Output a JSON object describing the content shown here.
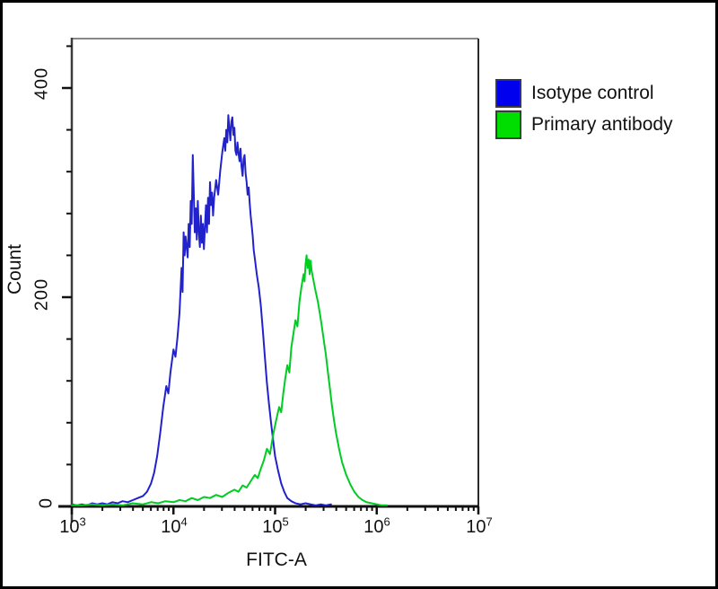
{
  "figure": {
    "background": "#ffffff",
    "outer_border_color": "#000000"
  },
  "chart_data": {
    "type": "line",
    "subtype": "flow-cytometry-histogram-overlay",
    "title": "",
    "xlabel": "FITC-A",
    "ylabel": "Count",
    "x_scale": "log10",
    "x_range_log10": [
      3,
      7
    ],
    "y_range": [
      0,
      447
    ],
    "grid": "off",
    "x_ticks": [
      {
        "base": "10",
        "exp": "3"
      },
      {
        "base": "10",
        "exp": "4"
      },
      {
        "base": "10",
        "exp": "5"
      },
      {
        "base": "10",
        "exp": "6"
      },
      {
        "base": "10",
        "exp": "7"
      }
    ],
    "y_tick_labels": [
      "0",
      "200",
      "400"
    ],
    "y_major_ticks": [
      0,
      200,
      400
    ],
    "y_minor_step": 40,
    "frame_colors": {
      "top": "#888888",
      "left": "#3c3c3c",
      "right": "#2a2a2a",
      "bottom": "#101010",
      "ticks": "#111111"
    },
    "legend": {
      "position": "outside-right-top",
      "entries": [
        {
          "label": "Isotype control",
          "color": "#0000EE"
        },
        {
          "label": "Primary antibody",
          "color": "#00DD00"
        }
      ]
    },
    "series": [
      {
        "name": "Isotype control",
        "color": "#2222CC",
        "points": [
          [
            3.0,
            2
          ],
          [
            3.05,
            1
          ],
          [
            3.1,
            2
          ],
          [
            3.15,
            1
          ],
          [
            3.2,
            3
          ],
          [
            3.25,
            2
          ],
          [
            3.3,
            3
          ],
          [
            3.35,
            2
          ],
          [
            3.4,
            4
          ],
          [
            3.45,
            3
          ],
          [
            3.5,
            5
          ],
          [
            3.55,
            4
          ],
          [
            3.6,
            6
          ],
          [
            3.65,
            8
          ],
          [
            3.7,
            10
          ],
          [
            3.74,
            14
          ],
          [
            3.78,
            22
          ],
          [
            3.81,
            32
          ],
          [
            3.84,
            48
          ],
          [
            3.87,
            70
          ],
          [
            3.9,
            95
          ],
          [
            3.93,
            115
          ],
          [
            3.95,
            108
          ],
          [
            3.97,
            128
          ],
          [
            4.0,
            150
          ],
          [
            4.02,
            143
          ],
          [
            4.04,
            162
          ],
          [
            4.06,
            185
          ],
          [
            4.08,
            228
          ],
          [
            4.09,
            205
          ],
          [
            4.1,
            262
          ],
          [
            4.11,
            240
          ],
          [
            4.12,
            258
          ],
          [
            4.14,
            238
          ],
          [
            4.15,
            270
          ],
          [
            4.16,
            248
          ],
          [
            4.17,
            292
          ],
          [
            4.18,
            270
          ],
          [
            4.19,
            336
          ],
          [
            4.2,
            300
          ],
          [
            4.21,
            262
          ],
          [
            4.22,
            285
          ],
          [
            4.23,
            255
          ],
          [
            4.24,
            292
          ],
          [
            4.25,
            262
          ],
          [
            4.26,
            248
          ],
          [
            4.27,
            278
          ],
          [
            4.28,
            252
          ],
          [
            4.29,
            270
          ],
          [
            4.3,
            246
          ],
          [
            4.31,
            268
          ],
          [
            4.32,
            288
          ],
          [
            4.33,
            262
          ],
          [
            4.34,
            295
          ],
          [
            4.35,
            270
          ],
          [
            4.36,
            310
          ],
          [
            4.37,
            288
          ],
          [
            4.38,
            300
          ],
          [
            4.39,
            278
          ],
          [
            4.4,
            295
          ],
          [
            4.42,
            312
          ],
          [
            4.44,
            298
          ],
          [
            4.46,
            320
          ],
          [
            4.48,
            338
          ],
          [
            4.5,
            352
          ],
          [
            4.51,
            340
          ],
          [
            4.52,
            360
          ],
          [
            4.53,
            348
          ],
          [
            4.54,
            374
          ],
          [
            4.55,
            362
          ],
          [
            4.56,
            350
          ],
          [
            4.57,
            368
          ],
          [
            4.58,
            372
          ],
          [
            4.59,
            355
          ],
          [
            4.6,
            362
          ],
          [
            4.61,
            340
          ],
          [
            4.62,
            336
          ],
          [
            4.63,
            348
          ],
          [
            4.64,
            338
          ],
          [
            4.65,
            330
          ],
          [
            4.66,
            342
          ],
          [
            4.67,
            325
          ],
          [
            4.68,
            316
          ],
          [
            4.69,
            332
          ],
          [
            4.7,
            336
          ],
          [
            4.71,
            318
          ],
          [
            4.72,
            310
          ],
          [
            4.73,
            298
          ],
          [
            4.74,
            305
          ],
          [
            4.75,
            290
          ],
          [
            4.76,
            278
          ],
          [
            4.77,
            268
          ],
          [
            4.78,
            258
          ],
          [
            4.79,
            245
          ],
          [
            4.8,
            238
          ],
          [
            4.82,
            222
          ],
          [
            4.84,
            209
          ],
          [
            4.86,
            192
          ],
          [
            4.88,
            168
          ],
          [
            4.9,
            142
          ],
          [
            4.92,
            118
          ],
          [
            4.94,
            98
          ],
          [
            4.96,
            80
          ],
          [
            4.98,
            64
          ],
          [
            5.0,
            48
          ],
          [
            5.03,
            34
          ],
          [
            5.06,
            22
          ],
          [
            5.09,
            14
          ],
          [
            5.12,
            8
          ],
          [
            5.16,
            5
          ],
          [
            5.2,
            3
          ],
          [
            5.25,
            2
          ],
          [
            5.3,
            3
          ],
          [
            5.35,
            2
          ],
          [
            5.4,
            1
          ],
          [
            5.45,
            2
          ],
          [
            5.5,
            1
          ],
          [
            5.55,
            2
          ]
        ]
      },
      {
        "name": "Primary antibody",
        "color": "#00CC22",
        "points": [
          [
            3.0,
            1
          ],
          [
            3.1,
            1
          ],
          [
            3.2,
            2
          ],
          [
            3.3,
            1
          ],
          [
            3.4,
            2
          ],
          [
            3.5,
            1
          ],
          [
            3.6,
            3
          ],
          [
            3.7,
            2
          ],
          [
            3.78,
            4
          ],
          [
            3.85,
            3
          ],
          [
            3.92,
            5
          ],
          [
            4.0,
            4
          ],
          [
            4.06,
            6
          ],
          [
            4.12,
            5
          ],
          [
            4.18,
            8
          ],
          [
            4.24,
            6
          ],
          [
            4.3,
            9
          ],
          [
            4.36,
            8
          ],
          [
            4.42,
            11
          ],
          [
            4.48,
            9
          ],
          [
            4.54,
            13
          ],
          [
            4.6,
            16
          ],
          [
            4.64,
            14
          ],
          [
            4.68,
            20
          ],
          [
            4.72,
            18
          ],
          [
            4.76,
            24
          ],
          [
            4.8,
            30
          ],
          [
            4.83,
            27
          ],
          [
            4.86,
            36
          ],
          [
            4.89,
            44
          ],
          [
            4.92,
            55
          ],
          [
            4.95,
            50
          ],
          [
            4.98,
            68
          ],
          [
            5.01,
            82
          ],
          [
            5.04,
            95
          ],
          [
            5.06,
            90
          ],
          [
            5.08,
            108
          ],
          [
            5.1,
            122
          ],
          [
            5.12,
            135
          ],
          [
            5.14,
            128
          ],
          [
            5.16,
            152
          ],
          [
            5.18,
            165
          ],
          [
            5.2,
            178
          ],
          [
            5.22,
            172
          ],
          [
            5.24,
            196
          ],
          [
            5.26,
            210
          ],
          [
            5.28,
            222
          ],
          [
            5.29,
            215
          ],
          [
            5.3,
            232
          ],
          [
            5.31,
            240
          ],
          [
            5.32,
            228
          ],
          [
            5.33,
            236
          ],
          [
            5.34,
            222
          ],
          [
            5.35,
            235
          ],
          [
            5.36,
            225
          ],
          [
            5.38,
            215
          ],
          [
            5.4,
            205
          ],
          [
            5.42,
            196
          ],
          [
            5.44,
            185
          ],
          [
            5.46,
            172
          ],
          [
            5.48,
            158
          ],
          [
            5.5,
            145
          ],
          [
            5.52,
            128
          ],
          [
            5.54,
            112
          ],
          [
            5.56,
            96
          ],
          [
            5.58,
            82
          ],
          [
            5.6,
            70
          ],
          [
            5.63,
            55
          ],
          [
            5.66,
            42
          ],
          [
            5.7,
            30
          ],
          [
            5.74,
            21
          ],
          [
            5.78,
            14
          ],
          [
            5.82,
            9
          ],
          [
            5.86,
            6
          ],
          [
            5.9,
            4
          ],
          [
            5.95,
            3
          ],
          [
            6.0,
            2
          ],
          [
            6.05,
            1
          ],
          [
            6.1,
            1
          ]
        ]
      }
    ]
  }
}
